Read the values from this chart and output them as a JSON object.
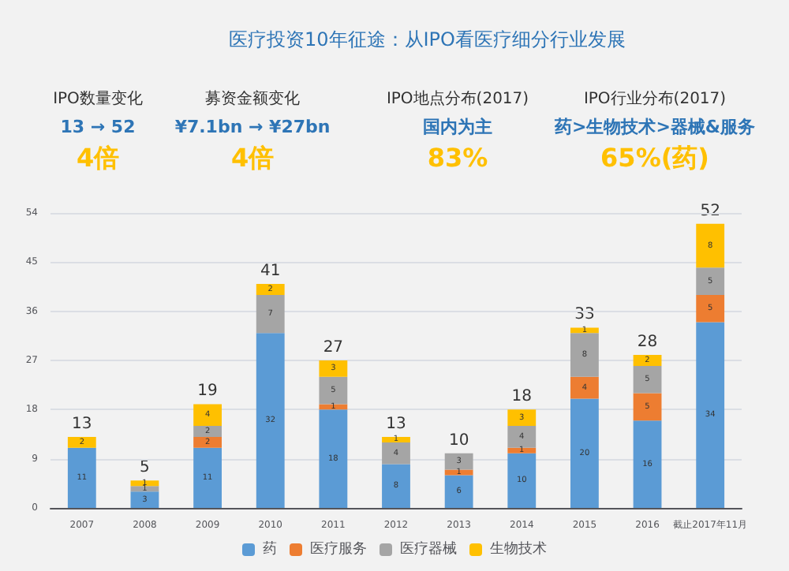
{
  "chart_data": {
    "type": "bar",
    "title": "医疗投资10年征途：从IPO看医疗细分行业发展",
    "annotations": [
      "IPO数量变化",
      "募资金额变化",
      "IPO地点分布(2017)",
      "IPO行业分布(2017)",
      "13 → 52",
      "¥7.1bn → ¥27bn",
      "国内为主",
      "药>生物技术>器械&服务",
      "4倍",
      "4倍",
      "83%",
      "65%(药)"
    ],
    "categories": [
      "2007",
      "2008",
      "2009",
      "2010",
      "2011",
      "2012",
      "2013",
      "2014",
      "2015",
      "2016",
      "截止2017年11月"
    ],
    "series": [
      {
        "name": "药",
        "color": "#5b9bd5",
        "values": [
          11,
          3,
          11,
          32,
          18,
          8,
          6,
          10,
          20,
          16,
          34
        ]
      },
      {
        "name": "医疗服务",
        "color": "#ed7d31",
        "values": [
          null,
          null,
          2,
          null,
          1,
          null,
          1,
          1,
          4,
          5,
          5
        ]
      },
      {
        "name": "医疗器械",
        "color": "#a5a5a5",
        "values": [
          null,
          1,
          2,
          7,
          5,
          4,
          3,
          4,
          8,
          5,
          5
        ]
      },
      {
        "name": "生物技术",
        "color": "#ffc000",
        "values": [
          2,
          1,
          4,
          2,
          3,
          1,
          null,
          3,
          1,
          2,
          8
        ]
      }
    ],
    "stacked": true,
    "data_labels": true,
    "totals": [
      "13",
      "5",
      "19",
      "41",
      "27",
      "13",
      "10",
      "18",
      "33",
      "28",
      "52"
    ],
    "ylim": [
      0,
      54
    ],
    "yticks": [
      0,
      9,
      18,
      27,
      36,
      45,
      54
    ],
    "grid": "y",
    "legend": "bottom"
  }
}
